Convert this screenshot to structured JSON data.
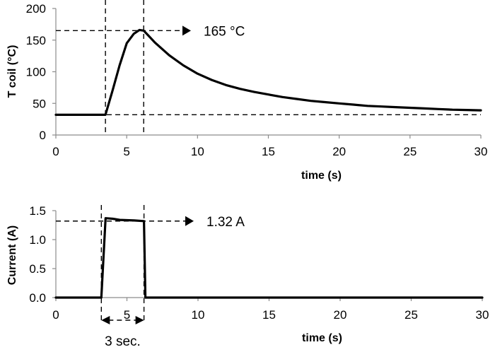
{
  "chart_data": [
    {
      "type": "line",
      "title": "",
      "xlabel": "time (s)",
      "ylabel": "T coil (°C)",
      "xlim": [
        0,
        30
      ],
      "ylim": [
        0,
        200
      ],
      "xticks": [
        "0",
        "5",
        "10",
        "15",
        "20",
        "25",
        "30"
      ],
      "yticks": [
        "0",
        "50",
        "100",
        "150",
        "200"
      ],
      "grid": false,
      "series": [
        {
          "x": [
            0,
            3.5,
            4.0,
            4.5,
            5.0,
            5.5,
            5.9,
            6.2,
            6.5,
            7,
            8,
            9,
            10,
            11,
            12,
            13,
            14,
            15,
            16,
            17,
            18,
            19,
            20,
            21,
            22,
            23,
            24,
            25,
            26,
            27,
            28,
            29,
            30
          ],
          "values": [
            32,
            32,
            70,
            110,
            145,
            160,
            166,
            165,
            158,
            146,
            126,
            110,
            97,
            87,
            79,
            73,
            68,
            64,
            60,
            57,
            54,
            52,
            50,
            48,
            46,
            45,
            44,
            43,
            42,
            41,
            40,
            39.5,
            39
          ]
        }
      ],
      "reference_lines": {
        "vertical_x": [
          3.5,
          6.2
        ],
        "horizontal_y": [
          32,
          165
        ]
      },
      "annotation": "165 °C"
    },
    {
      "type": "line",
      "title": "",
      "xlabel": "time (s)",
      "ylabel": "Current (A)",
      "xlim": [
        0,
        30
      ],
      "ylim": [
        0,
        1.5
      ],
      "xticks": [
        "0",
        "5",
        "10",
        "15",
        "20",
        "25",
        "30"
      ],
      "yticks": [
        "0.0",
        "0.5",
        "1.0",
        "1.5"
      ],
      "grid": false,
      "series": [
        {
          "x": [
            0,
            3.2,
            3.5,
            4.0,
            4.5,
            5.5,
            6.2,
            6.3,
            30
          ],
          "values": [
            0,
            0,
            1.37,
            1.36,
            1.34,
            1.33,
            1.32,
            0,
            0
          ]
        }
      ],
      "reference_lines": {
        "vertical_x": [
          3.2,
          6.2
        ],
        "horizontal_y": [
          1.32
        ]
      },
      "annotation": "1.32 A",
      "interval_label": "3 sec."
    }
  ]
}
